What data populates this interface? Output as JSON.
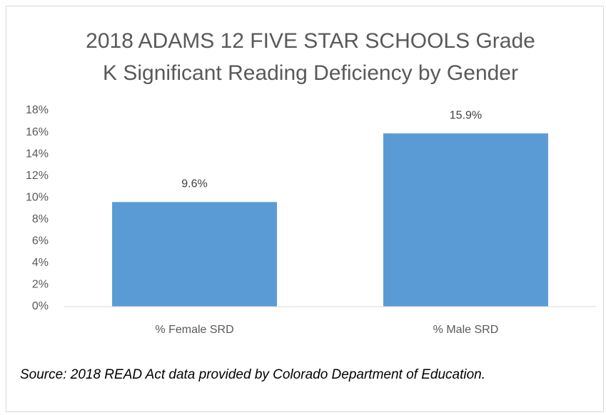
{
  "chart_data": {
    "type": "bar",
    "title": "2018 ADAMS 12 FIVE STAR SCHOOLS Grade K Significant Reading Deficiency by Gender",
    "categories": [
      "% Female SRD",
      "% Male SRD"
    ],
    "values": [
      9.6,
      15.9
    ],
    "value_labels": [
      "9.6%",
      "15.9%"
    ],
    "color": "#5b9bd5",
    "ylim": [
      0,
      18
    ],
    "yticks": [
      {
        "value": 0,
        "label": "0%"
      },
      {
        "value": 2,
        "label": "2%"
      },
      {
        "value": 4,
        "label": "4%"
      },
      {
        "value": 6,
        "label": "6%"
      },
      {
        "value": 8,
        "label": "8%"
      },
      {
        "value": 10,
        "label": "10%"
      },
      {
        "value": 12,
        "label": "12%"
      },
      {
        "value": 14,
        "label": "14%"
      },
      {
        "value": 16,
        "label": "16%"
      },
      {
        "value": 18,
        "label": "18%"
      }
    ],
    "grid": false,
    "source": "Source:  2018 READ Act data provided by Colorado Department  of Education."
  }
}
